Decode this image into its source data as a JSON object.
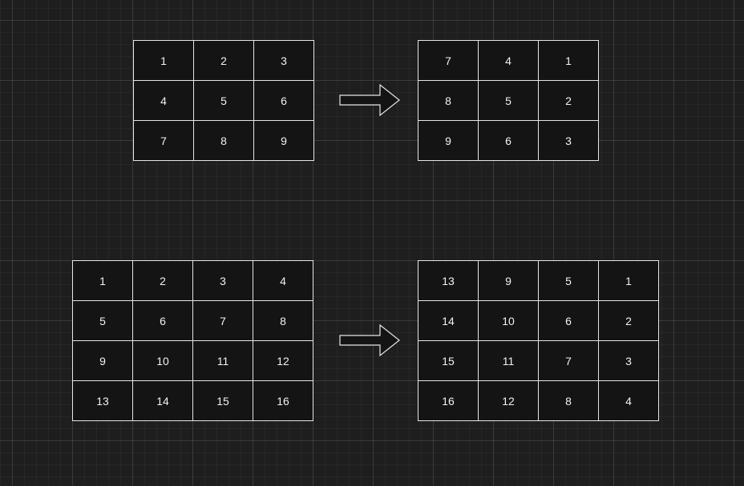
{
  "diagrams": [
    {
      "before": [
        [
          "1",
          "2",
          "3"
        ],
        [
          "4",
          "5",
          "6"
        ],
        [
          "7",
          "8",
          "9"
        ]
      ],
      "after": [
        [
          "7",
          "4",
          "1"
        ],
        [
          "8",
          "5",
          "2"
        ],
        [
          "9",
          "6",
          "3"
        ]
      ]
    },
    {
      "before": [
        [
          "1",
          "2",
          "3",
          "4"
        ],
        [
          "5",
          "6",
          "7",
          "8"
        ],
        [
          "9",
          "10",
          "11",
          "12"
        ],
        [
          "13",
          "14",
          "15",
          "16"
        ]
      ],
      "after": [
        [
          "13",
          "9",
          "5",
          "1"
        ],
        [
          "14",
          "10",
          "6",
          "2"
        ],
        [
          "15",
          "11",
          "7",
          "3"
        ],
        [
          "16",
          "12",
          "8",
          "4"
        ]
      ]
    }
  ],
  "colors": {
    "canvas": "#1e1e1e",
    "cell_fill": "#141414",
    "stroke": "#e6e6e6",
    "text": "#f2f2f2"
  }
}
